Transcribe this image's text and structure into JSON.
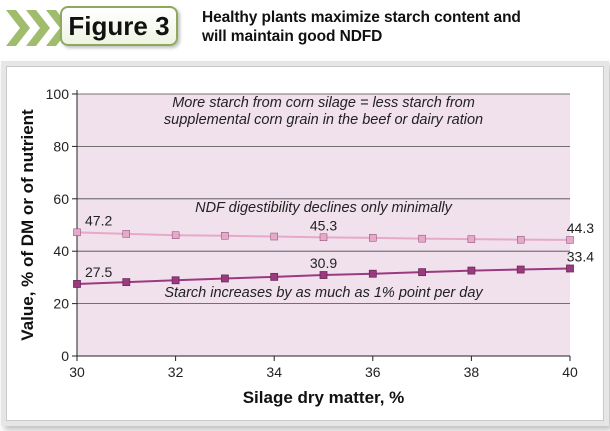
{
  "figure": {
    "label": "Figure 3",
    "title_lines": [
      "Healthy plants maximize starch content and",
      "will maintain good NDFD"
    ]
  },
  "chart_data": {
    "type": "line",
    "xlabel": "Silage dry matter, %",
    "ylabel": "Value, % of DM or of nutrient",
    "xlim": [
      30,
      40
    ],
    "ylim": [
      0,
      100
    ],
    "x_ticks": [
      30,
      32,
      34,
      36,
      38,
      40
    ],
    "y_ticks": [
      0,
      20,
      40,
      60,
      80,
      100
    ],
    "x": [
      30,
      31,
      32,
      33,
      34,
      35,
      36,
      37,
      38,
      39,
      40
    ],
    "series": [
      {
        "values": [
          47.2,
          46.6,
          46.1,
          45.9,
          45.6,
          45.3,
          45.1,
          44.8,
          44.6,
          44.4,
          44.3
        ],
        "color": "#e6a9c8",
        "data_labels": [
          {
            "x": 30,
            "text": "47.2"
          },
          {
            "x": 35,
            "text": "45.3"
          },
          {
            "x": 40,
            "text": "44.3"
          }
        ]
      },
      {
        "values": [
          27.5,
          28.2,
          28.9,
          29.6,
          30.2,
          30.9,
          31.4,
          32.0,
          32.6,
          33.0,
          33.4
        ],
        "color": "#9b3a7f",
        "data_labels": [
          {
            "x": 30,
            "text": "27.5"
          },
          {
            "x": 35,
            "text": "30.9"
          },
          {
            "x": 40,
            "text": "33.4"
          }
        ]
      }
    ],
    "annotations": [
      {
        "x": 35,
        "y": 95,
        "text": "More starch from corn silage = less starch from"
      },
      {
        "x": 35,
        "y": 88.5,
        "text": "supplemental corn grain in the beef or dairy ration"
      },
      {
        "x": 35,
        "y": 55,
        "text": "NDF digestibility declines only minimally"
      },
      {
        "x": 35,
        "y": 22.5,
        "text": "Starch increases by as much as 1% point per day"
      }
    ],
    "grid": true,
    "background": "#f0e1ec"
  }
}
